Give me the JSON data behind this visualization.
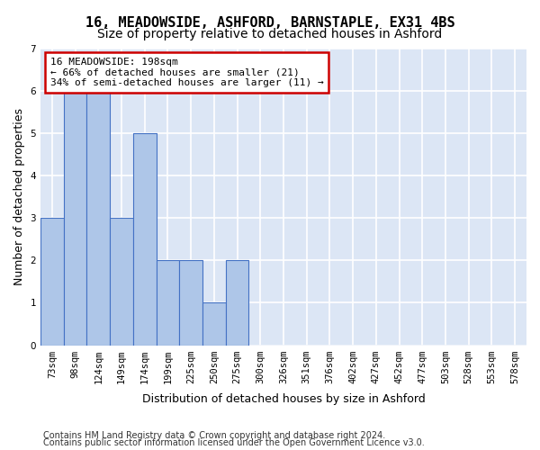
{
  "title1": "16, MEADOWSIDE, ASHFORD, BARNSTAPLE, EX31 4BS",
  "title2": "Size of property relative to detached houses in Ashford",
  "xlabel": "Distribution of detached houses by size in Ashford",
  "ylabel": "Number of detached properties",
  "bar_labels": [
    "73sqm",
    "98sqm",
    "124sqm",
    "149sqm",
    "174sqm",
    "199sqm",
    "225sqm",
    "250sqm",
    "275sqm",
    "300sqm",
    "326sqm",
    "351sqm",
    "376sqm",
    "402sqm",
    "427sqm",
    "452sqm",
    "477sqm",
    "503sqm",
    "528sqm",
    "553sqm",
    "578sqm"
  ],
  "values": [
    3,
    6,
    6,
    3,
    5,
    2,
    2,
    1,
    2,
    0,
    0,
    0,
    0,
    0,
    0,
    0,
    0,
    0,
    0,
    0,
    0
  ],
  "bar_color": "#aec6e8",
  "bar_edge_color": "#4472c4",
  "highlight_bin_index": 4,
  "annotation_text": "16 MEADOWSIDE: 198sqm\n← 66% of detached houses are smaller (21)\n34% of semi-detached houses are larger (11) →",
  "annotation_box_color": "#ffffff",
  "annotation_box_edge_color": "#cc0000",
  "footer1": "Contains HM Land Registry data © Crown copyright and database right 2024.",
  "footer2": "Contains public sector information licensed under the Open Government Licence v3.0.",
  "ylim": [
    0,
    7
  ],
  "yticks": [
    0,
    1,
    2,
    3,
    4,
    5,
    6,
    7
  ],
  "background_color": "#dce6f5",
  "grid_color": "#ffffff",
  "title1_fontsize": 11,
  "title2_fontsize": 10,
  "ylabel_fontsize": 9,
  "xlabel_fontsize": 9,
  "tick_fontsize": 7.5,
  "annotation_fontsize": 8,
  "footer_fontsize": 7
}
